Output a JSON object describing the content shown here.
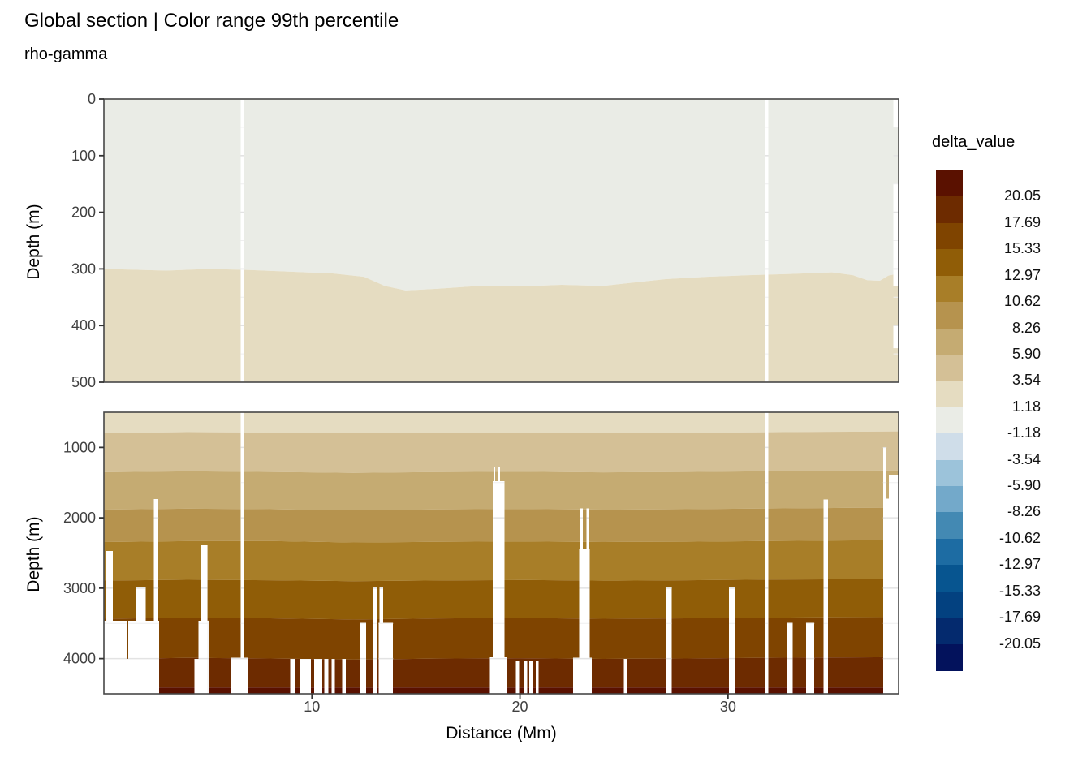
{
  "title": "Global section | Color range 99th percentile",
  "subtitle": "rho-gamma",
  "axes": {
    "x_title": "Distance (Mm)",
    "y_title": "Depth (m)",
    "x_tick_labels": [
      "10",
      "20",
      "30"
    ],
    "y_tick_labels_top": [
      "0",
      "100",
      "200",
      "300",
      "400",
      "500"
    ],
    "y_tick_labels_bottom": [
      "1000",
      "2000",
      "3000",
      "4000"
    ]
  },
  "legend": {
    "title": "delta_value",
    "labels": [
      "20.05",
      "17.69",
      "15.33",
      "12.97",
      "10.62",
      "8.26",
      "5.90",
      "3.54",
      "1.18",
      "-1.18",
      "-3.54",
      "-5.90",
      "-8.26",
      "-10.62",
      "-12.97",
      "-15.33",
      "-17.69",
      "-20.05"
    ],
    "colors": [
      "#5a1100",
      "#6d2b00",
      "#7f4400",
      "#905d07",
      "#a87e28",
      "#b6934e",
      "#c5ab72",
      "#d4c096",
      "#e5dcc1",
      "#eaece6",
      "#cfdde9",
      "#9cc3da",
      "#73a9ca",
      "#4389b3",
      "#1d6ca3",
      "#075590",
      "#034180",
      "#042a6e",
      "#03125c"
    ]
  },
  "chart_data": {
    "type": "heatmap",
    "title": "Global section | Color range 99th percentile",
    "subtitle": "rho-gamma",
    "xlabel": "Distance (Mm)",
    "ylabel": "Depth (m)",
    "x_range": [
      0,
      38.2
    ],
    "x_ticks": [
      10,
      20,
      30
    ],
    "x_minor_ticks": [
      5,
      15,
      25,
      35
    ],
    "legend_title": "delta_value",
    "value_breaks": [
      20.05,
      17.69,
      15.33,
      12.97,
      10.62,
      8.26,
      5.9,
      3.54,
      1.18,
      -1.18,
      -3.54,
      -5.9,
      -8.26,
      -10.62,
      -12.97,
      -15.33,
      -17.69,
      -20.05
    ],
    "band_colors": [
      "#5a1100",
      "#6d2b00",
      "#7f4400",
      "#905d07",
      "#a87e28",
      "#b6934e",
      "#c5ab72",
      "#d4c096",
      "#e5dcc1",
      "#eaece6",
      "#cfdde9",
      "#9cc3da",
      "#73a9ca",
      "#4389b3",
      "#1d6ca3",
      "#075590",
      "#034180",
      "#042a6e",
      "#03125c"
    ],
    "grid_color_major": "#e3e3e3",
    "grid_color_minor": "#efefef",
    "full_height_gap_lines": [
      [
        6.57,
        6.73
      ],
      [
        31.76,
        31.94
      ]
    ],
    "upper_panel": {
      "depth_range": [
        0,
        500
      ],
      "y_ticks": [
        0,
        100,
        200,
        300,
        400,
        500
      ],
      "y_minor_ticks": [
        50,
        150,
        250,
        350,
        450
      ],
      "above_color_index": 9,
      "below_color_index": 8,
      "boundary_points": [
        [
          0,
          300
        ],
        [
          3,
          303
        ],
        [
          5,
          300
        ],
        [
          7,
          302
        ],
        [
          9,
          305
        ],
        [
          11,
          308
        ],
        [
          12.5,
          314
        ],
        [
          13.5,
          330
        ],
        [
          14.5,
          338
        ],
        [
          16,
          335
        ],
        [
          18,
          330
        ],
        [
          20,
          331
        ],
        [
          22,
          328
        ],
        [
          24,
          330
        ],
        [
          25.5,
          324
        ],
        [
          27,
          318
        ],
        [
          29,
          314
        ],
        [
          31,
          311
        ],
        [
          33,
          309
        ],
        [
          35,
          306
        ],
        [
          36,
          311
        ],
        [
          36.7,
          320
        ],
        [
          37.3,
          321
        ],
        [
          37.7,
          312
        ],
        [
          38.2,
          308
        ]
      ],
      "gaps": [
        [
          37.95,
          38.2,
          0
        ]
      ],
      "patches": [
        [
          37.9,
          38.2,
          50,
          150,
          9
        ],
        [
          37.9,
          38.2,
          330,
          400,
          8
        ],
        [
          37.9,
          38.2,
          440,
          500,
          8
        ]
      ]
    },
    "lower_panel": {
      "depth_range": [
        500,
        4500
      ],
      "y_ticks": [
        1000,
        2000,
        3000,
        4000
      ],
      "y_minor_ticks": [
        1500,
        2500,
        3500
      ],
      "band_xs": [
        0,
        4,
        8,
        12,
        16,
        20,
        24,
        28,
        32,
        36,
        38.2
      ],
      "band_boundaries": [
        [
          500,
          500,
          500,
          500,
          500,
          500,
          500,
          500,
          500,
          500,
          500
        ],
        [
          795,
          782,
          788,
          800,
          793,
          788,
          798,
          792,
          784,
          776,
          772
        ],
        [
          1352,
          1340,
          1348,
          1362,
          1350,
          1344,
          1354,
          1348,
          1338,
          1330,
          1328
        ],
        [
          1884,
          1870,
          1878,
          1894,
          1880,
          1874,
          1884,
          1878,
          1868,
          1858,
          1856
        ],
        [
          2344,
          2332,
          2330,
          2350,
          2342,
          2336,
          2344,
          2340,
          2330,
          2322,
          2320
        ],
        [
          2892,
          2880,
          2888,
          2900,
          2890,
          2884,
          2894,
          2888,
          2878,
          2872,
          2870
        ],
        [
          3434,
          3420,
          3428,
          3444,
          3430,
          3424,
          3434,
          3428,
          3418,
          3412,
          3410
        ],
        [
          4004,
          3990,
          3998,
          4014,
          4000,
          3994,
          4004,
          3998,
          3988,
          3982,
          3980
        ],
        [
          4410,
          4410,
          4410,
          4410,
          4410,
          4410,
          4410,
          4410,
          4410,
          4410,
          4410
        ],
        [
          4500,
          4500,
          4500,
          4500,
          4500,
          4500,
          4500,
          4500,
          4500,
          4500,
          4500
        ]
      ],
      "band_color_indices": [
        8,
        7,
        6,
        5,
        4,
        3,
        2,
        1,
        0
      ],
      "gaps": [
        [
          0.12,
          0.42,
          2470
        ],
        [
          1.55,
          2.0,
          2990
        ],
        [
          2.4,
          2.62,
          1735
        ],
        [
          0.0,
          1.1,
          3460
        ],
        [
          1.18,
          2.65,
          3460
        ],
        [
          0.0,
          2.65,
          4005
        ],
        [
          4.68,
          4.98,
          2390
        ],
        [
          4.55,
          5.05,
          3460
        ],
        [
          4.35,
          4.95,
          4005
        ],
        [
          6.1,
          6.9,
          3985
        ],
        [
          8.95,
          9.2,
          4005
        ],
        [
          9.45,
          9.95,
          4005
        ],
        [
          10.1,
          10.5,
          4005
        ],
        [
          10.6,
          10.78,
          4005
        ],
        [
          10.95,
          11.1,
          4005
        ],
        [
          11.45,
          11.62,
          4005
        ],
        [
          12.3,
          12.6,
          3490
        ],
        [
          12.95,
          13.12,
          2990
        ],
        [
          13.25,
          13.42,
          2990
        ],
        [
          13.2,
          13.9,
          3490
        ],
        [
          18.7,
          19.25,
          1480
        ],
        [
          18.73,
          18.8,
          1270
        ],
        [
          18.95,
          19.04,
          1270
        ],
        [
          18.55,
          19.35,
          3980
        ],
        [
          19.8,
          19.95,
          4030
        ],
        [
          20.2,
          20.35,
          4030
        ],
        [
          20.45,
          20.6,
          4030
        ],
        [
          20.75,
          20.9,
          4030
        ],
        [
          22.9,
          23.02,
          1865
        ],
        [
          23.2,
          23.32,
          1865
        ],
        [
          22.85,
          23.35,
          2450
        ],
        [
          22.55,
          23.45,
          3985
        ],
        [
          25.0,
          25.14,
          4005
        ],
        [
          27.0,
          27.3,
          2990
        ],
        [
          30.05,
          30.35,
          2985
        ],
        [
          32.85,
          33.1,
          3490
        ],
        [
          33.75,
          34.15,
          3490
        ],
        [
          34.6,
          34.8,
          1740
        ],
        [
          37.45,
          37.62,
          995
        ],
        [
          37.62,
          37.73,
          1725
        ],
        [
          37.73,
          38.2,
          1390
        ]
      ]
    }
  }
}
